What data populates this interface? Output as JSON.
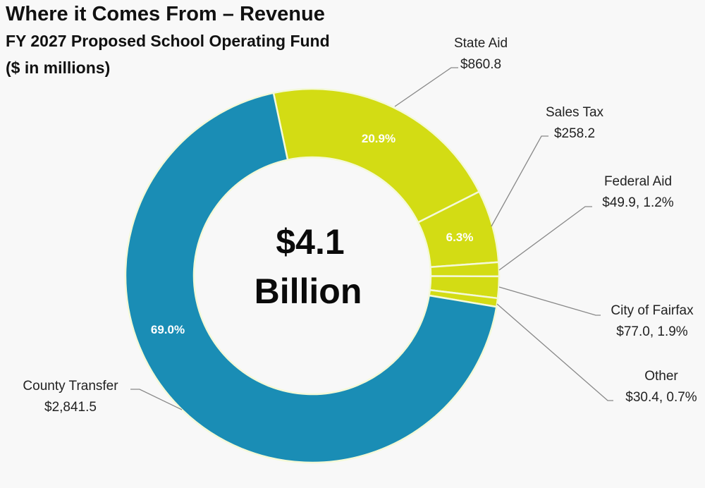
{
  "header": {
    "title": "Where it Comes From – Revenue",
    "subtitle": "FY 2027 Proposed School Operating Fund",
    "units": "($ in millions)"
  },
  "chart_data": {
    "type": "pie",
    "variant": "donut",
    "title": "Where it Comes From – Revenue",
    "subtitle": "FY 2027 Proposed School Operating Fund ($ in millions)",
    "center_text": [
      "$4.1",
      "Billion"
    ],
    "total_label": "$4.1 Billion",
    "slices": [
      {
        "name": "State Aid",
        "value": 860.8,
        "percent": 20.9,
        "value_label": "$860.8",
        "inner_label": "20.9%",
        "color": "#d3dc14"
      },
      {
        "name": "Sales Tax",
        "value": 258.2,
        "percent": 6.3,
        "value_label": "$258.2",
        "inner_label": "6.3%",
        "color": "#d3dc14"
      },
      {
        "name": "Federal Aid",
        "value": 49.9,
        "percent": 1.2,
        "value_label": "$49.9, 1.2%",
        "inner_label": "",
        "color": "#d3dc14"
      },
      {
        "name": "City of Fairfax",
        "value": 77.0,
        "percent": 1.9,
        "value_label": "$77.0, 1.9%",
        "inner_label": "",
        "color": "#d3dc14"
      },
      {
        "name": "Other",
        "value": 30.4,
        "percent": 0.7,
        "value_label": "$30.4, 0.7%",
        "inner_label": "",
        "color": "#d3dc14"
      },
      {
        "name": "County Transfer",
        "value": 2841.5,
        "percent": 69.0,
        "value_label": "$2,841.5",
        "inner_label": "69.0%",
        "color": "#1a8db5"
      }
    ],
    "legend": "none (callout labels)"
  }
}
